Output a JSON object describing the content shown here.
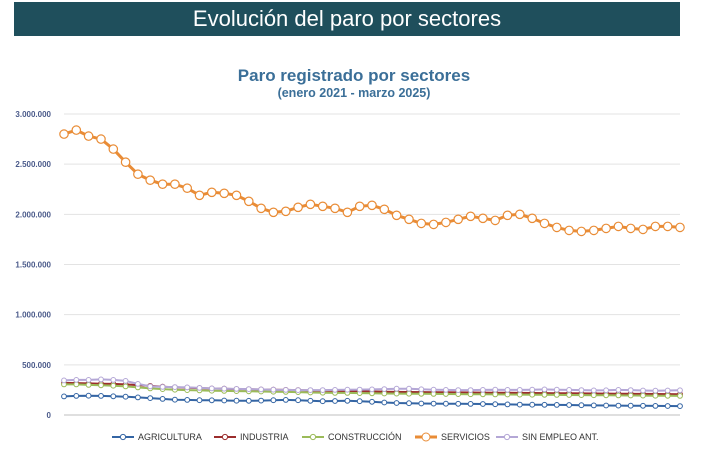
{
  "header": {
    "title": "Evolución del paro por sectores"
  },
  "chart_data": {
    "type": "line",
    "title": "Paro registrado por sectores",
    "subtitle": "(enero 2021 - marzo 2025)",
    "xlabel": "",
    "ylabel": "",
    "ylim": [
      0,
      3000000
    ],
    "yticks": [
      0,
      500000,
      1000000,
      1500000,
      2000000,
      2500000,
      3000000
    ],
    "ytick_labels": [
      "0",
      "500.000",
      "1.000.000",
      "1.500.000",
      "2.000.000",
      "2.500.000",
      "3.000.000"
    ],
    "legend_position": "bottom",
    "series": [
      {
        "name": "AGRICULTURA",
        "color": "#3465a4",
        "values": [
          185000,
          190000,
          192000,
          190000,
          186000,
          182000,
          175000,
          168000,
          160000,
          152000,
          150000,
          148000,
          147000,
          145000,
          143000,
          142000,
          144000,
          148000,
          150000,
          148000,
          142000,
          138000,
          140000,
          142000,
          138000,
          132000,
          125000,
          120000,
          118000,
          115000,
          114000,
          113000,
          112000,
          111000,
          110000,
          108000,
          106000,
          104000,
          103000,
          102000,
          101000,
          100000,
          98000,
          96000,
          95000,
          94000,
          93000,
          92000,
          91000,
          90000,
          89000
        ]
      },
      {
        "name": "INDUSTRIA",
        "color": "#9b2d2d",
        "values": [
          320000,
          318000,
          315000,
          312000,
          310000,
          305000,
          298000,
          290000,
          282000,
          276000,
          272000,
          268000,
          264000,
          262000,
          258000,
          256000,
          254000,
          252000,
          250000,
          248000,
          244000,
          242000,
          240000,
          238000,
          236000,
          234000,
          232000,
          230000,
          229000,
          228000,
          227000,
          226000,
          225000,
          224000,
          223000,
          222000,
          221000,
          220000,
          219000,
          218000,
          217000,
          216000,
          215000,
          214000,
          213000,
          212000,
          211000,
          210000,
          209000,
          208000,
          207000
        ]
      },
      {
        "name": "CONSTRUCCIÓN",
        "color": "#9bbb59",
        "values": [
          305000,
          305000,
          300000,
          296000,
          292000,
          285000,
          275000,
          265000,
          258000,
          252000,
          248000,
          245000,
          242000,
          240000,
          238000,
          236000,
          234000,
          232000,
          230000,
          228000,
          224000,
          222000,
          220000,
          220000,
          218000,
          216000,
          214000,
          213000,
          212000,
          211000,
          210000,
          209000,
          208000,
          207000,
          206000,
          205000,
          204000,
          203000,
          202000,
          201000,
          200000,
          199000,
          198000,
          197000,
          196000,
          195000,
          194000,
          193000,
          192000,
          191000,
          190000
        ]
      },
      {
        "name": "SERVICIOS",
        "color": "#e98c36",
        "values": [
          2800000,
          2840000,
          2780000,
          2750000,
          2650000,
          2520000,
          2400000,
          2340000,
          2300000,
          2300000,
          2260000,
          2190000,
          2220000,
          2210000,
          2190000,
          2130000,
          2060000,
          2020000,
          2030000,
          2070000,
          2100000,
          2080000,
          2060000,
          2020000,
          2080000,
          2090000,
          2050000,
          1990000,
          1950000,
          1910000,
          1900000,
          1920000,
          1950000,
          1980000,
          1960000,
          1940000,
          1990000,
          2000000,
          1960000,
          1910000,
          1870000,
          1840000,
          1830000,
          1840000,
          1860000,
          1880000,
          1860000,
          1850000,
          1880000,
          1880000,
          1870000
        ]
      },
      {
        "name": "SIN EMPLEO ANT.",
        "color": "#b4a7d6",
        "values": [
          345000,
          350000,
          350000,
          355000,
          350000,
          340000,
          310000,
          285000,
          280000,
          278000,
          275000,
          270000,
          265000,
          262000,
          260000,
          258000,
          255000,
          252000,
          250000,
          248000,
          248000,
          248000,
          250000,
          252000,
          253000,
          255000,
          258000,
          262000,
          262000,
          256000,
          252000,
          250000,
          248000,
          248000,
          250000,
          252000,
          250000,
          250000,
          252000,
          255000,
          252000,
          250000,
          248000,
          245000,
          246000,
          250000,
          248000,
          244000,
          242000,
          244000,
          246000
        ]
      }
    ]
  }
}
